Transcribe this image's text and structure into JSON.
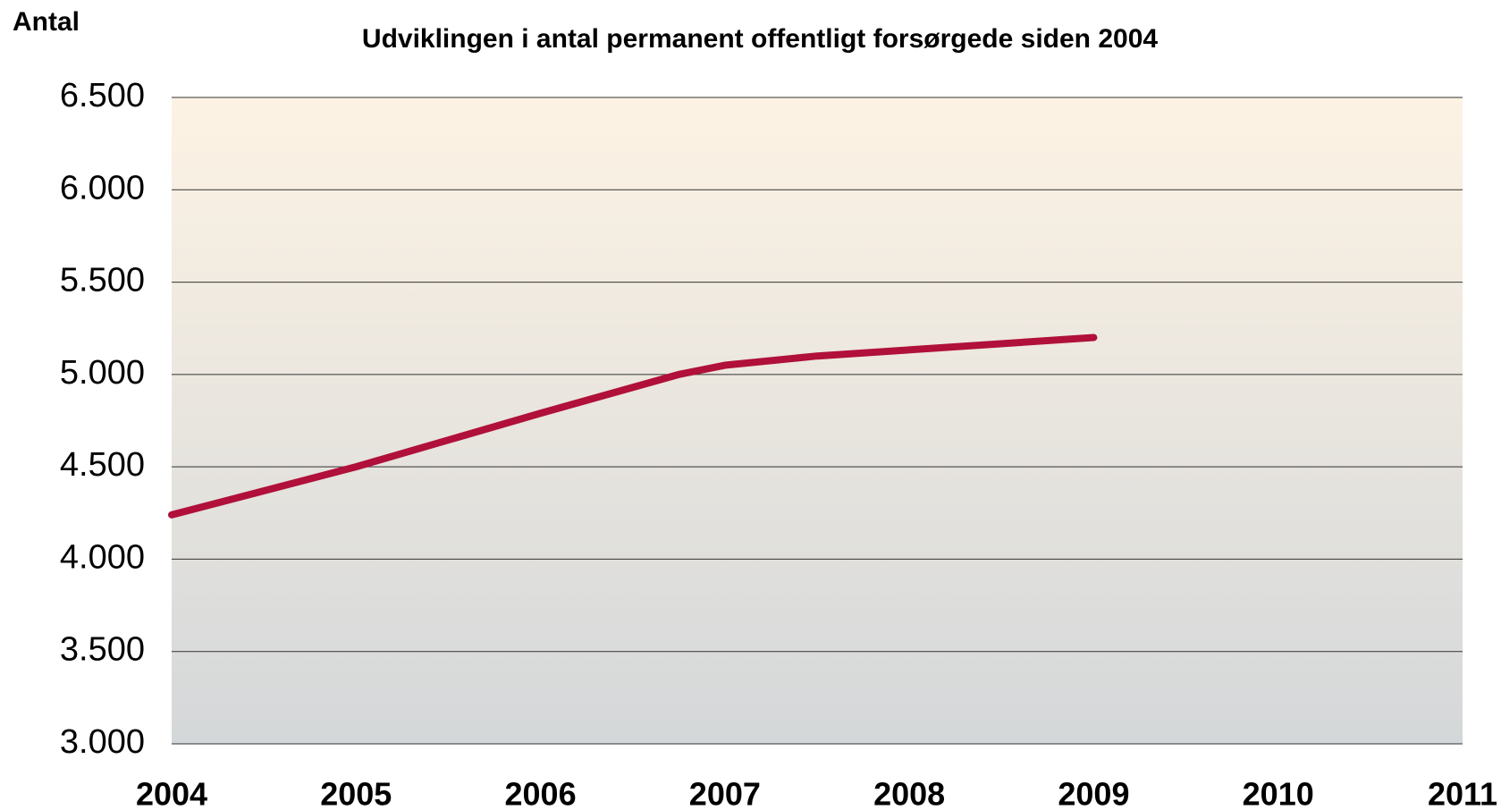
{
  "chart_data": {
    "type": "line",
    "title": "Udviklingen i antal permanent offentligt forsørgede siden 2004",
    "ylabel": "Antal",
    "x": [
      2004,
      2005,
      2006,
      2006.75,
      2007,
      2007.5,
      2009
    ],
    "series": [
      {
        "name": "Antal",
        "color": "#b0103a",
        "values": [
          4240,
          4500,
          4790,
          5000,
          5050,
          5100,
          5200
        ]
      }
    ],
    "xlim": [
      2004,
      2011
    ],
    "xticks": [
      2004,
      2005,
      2006,
      2007,
      2008,
      2009,
      2010,
      2011
    ],
    "ylim": [
      3000,
      6500
    ],
    "yticks": [
      {
        "value": 3000,
        "label": "3.000"
      },
      {
        "value": 3500,
        "label": "3.500"
      },
      {
        "value": 4000,
        "label": "4.000"
      },
      {
        "value": 4500,
        "label": "4.500"
      },
      {
        "value": 5000,
        "label": "5.000"
      },
      {
        "value": 5500,
        "label": "5.500"
      },
      {
        "value": 6000,
        "label": "6.000"
      },
      {
        "value": 6500,
        "label": "6.500"
      }
    ],
    "grid": true
  }
}
